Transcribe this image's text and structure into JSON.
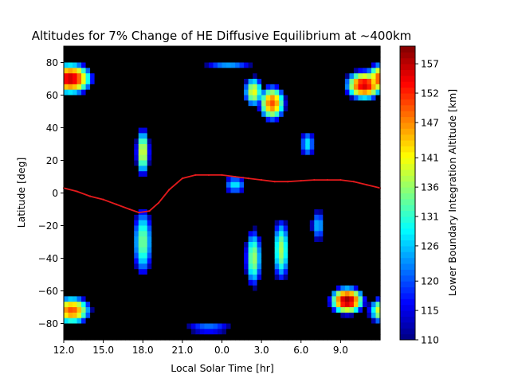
{
  "chart_data": {
    "type": "heatmap",
    "subtype": "filled-contour",
    "title": "Altitudes for 7% Change of HE Diffusive Equilibrium at ~400km",
    "xlabel": "Local Solar Time [hr]",
    "ylabel": "Latitude [deg]",
    "colorbar_label": "Lower Boundary Integration Altitude [km]",
    "colormap": "jet",
    "no_data_color": "#000000",
    "line_color": "#e41a1c",
    "x_axis_hours": [
      12,
      13,
      14,
      15,
      16,
      17,
      18,
      19,
      20,
      21,
      22,
      23,
      0,
      1,
      2,
      3,
      4,
      5,
      6,
      7,
      8,
      9,
      10,
      11,
      12
    ],
    "xticks": [
      "12.0",
      "15.0",
      "18.0",
      "21.0",
      "0.0",
      "3.0",
      "6.0",
      "9.0"
    ],
    "yticks": [
      "80",
      "60",
      "40",
      "20",
      "0",
      "−20",
      "−40",
      "−60",
      "−80"
    ],
    "ylim": [
      -90,
      90
    ],
    "colorbar_range": [
      110,
      160
    ],
    "colorbar_ticks": [
      "110",
      "115",
      "120",
      "126",
      "131",
      "136",
      "141",
      "147",
      "152",
      "157"
    ],
    "blobs": [
      {
        "x": 0.5,
        "y": 70,
        "sx": 2.2,
        "sy": 13,
        "amp": 157
      },
      {
        "x": 22.8,
        "y": 66,
        "sx": 1.9,
        "sy": 12,
        "amp": 156
      },
      {
        "x": 0.6,
        "y": -72,
        "sx": 2.0,
        "sy": 12,
        "amp": 150
      },
      {
        "x": 21.5,
        "y": -66,
        "sx": 1.7,
        "sy": 11,
        "amp": 159
      },
      {
        "x": 6.0,
        "y": 25,
        "sx": 0.8,
        "sy": 22,
        "amp": 141
      },
      {
        "x": 6.0,
        "y": -30,
        "sx": 1.2,
        "sy": 34,
        "amp": 135
      },
      {
        "x": 15.8,
        "y": 55,
        "sx": 1.4,
        "sy": 15,
        "amp": 150
      },
      {
        "x": 14.4,
        "y": 62,
        "sx": 1.1,
        "sy": 14,
        "amp": 141
      },
      {
        "x": 14.4,
        "y": -40,
        "sx": 1.0,
        "sy": 28,
        "amp": 137
      },
      {
        "x": 16.5,
        "y": -35,
        "sx": 1.0,
        "sy": 30,
        "amp": 137
      },
      {
        "x": 13.0,
        "y": 5,
        "sx": 1.5,
        "sy": 10,
        "amp": 128
      },
      {
        "x": 12.5,
        "y": 78,
        "sx": 3.5,
        "sy": 6,
        "amp": 124
      },
      {
        "x": 11.0,
        "y": -83,
        "sx": 3.5,
        "sy": 5,
        "amp": 126
      },
      {
        "x": 18.5,
        "y": 30,
        "sx": 1.0,
        "sy": 15,
        "amp": 128
      },
      {
        "x": 19.3,
        "y": -20,
        "sx": 1.0,
        "sy": 18,
        "amp": 126
      }
    ],
    "line_series": [
      {
        "lst": 0,
        "lat": 3
      },
      {
        "lst": 1,
        "lat": 1
      },
      {
        "lst": 2,
        "lat": -2
      },
      {
        "lst": 3,
        "lat": -4
      },
      {
        "lst": 4,
        "lat": -7
      },
      {
        "lst": 5,
        "lat": -10
      },
      {
        "lst": 5.7,
        "lat": -12
      },
      {
        "lst": 6.5,
        "lat": -11
      },
      {
        "lst": 7.2,
        "lat": -6
      },
      {
        "lst": 8,
        "lat": 2
      },
      {
        "lst": 9,
        "lat": 9
      },
      {
        "lst": 10,
        "lat": 11
      },
      {
        "lst": 11,
        "lat": 11
      },
      {
        "lst": 12,
        "lat": 11
      },
      {
        "lst": 13,
        "lat": 10
      },
      {
        "lst": 14,
        "lat": 9
      },
      {
        "lst": 15,
        "lat": 8
      },
      {
        "lst": 16,
        "lat": 7
      },
      {
        "lst": 17,
        "lat": 7
      },
      {
        "lst": 18,
        "lat": 7.5
      },
      {
        "lst": 19,
        "lat": 8
      },
      {
        "lst": 20,
        "lat": 8
      },
      {
        "lst": 21,
        "lat": 8
      },
      {
        "lst": 22,
        "lat": 7
      },
      {
        "lst": 23,
        "lat": 5
      },
      {
        "lst": 24,
        "lat": 3
      }
    ]
  }
}
